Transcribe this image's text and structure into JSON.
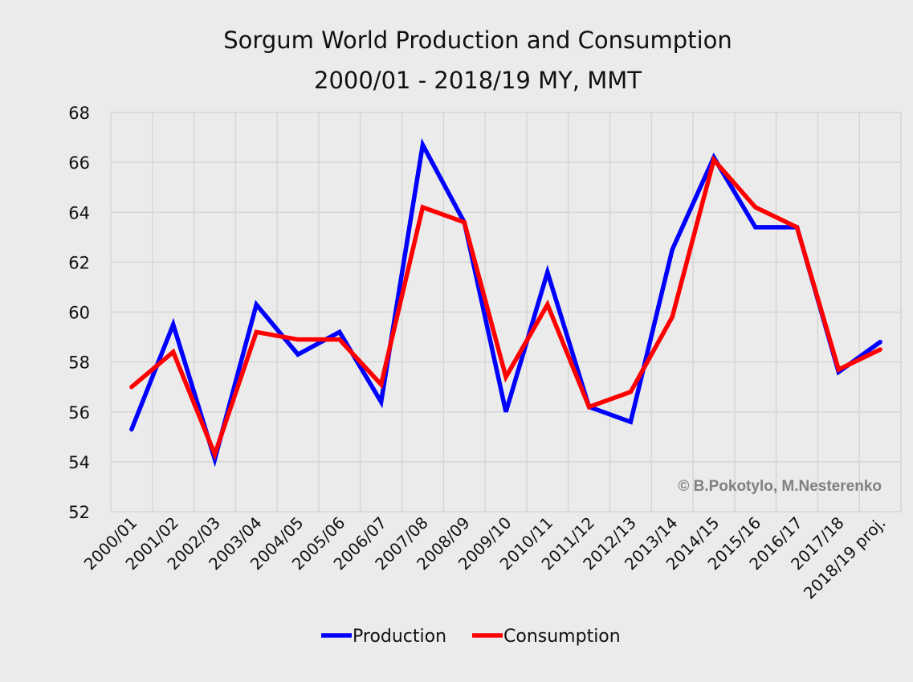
{
  "chart_data": {
    "type": "line",
    "title": "Sorgum World Production and Consumption",
    "subtitle": "2000/01 - 2018/19 MY, MMT",
    "xlabel": "",
    "ylabel": "",
    "ylim": [
      52,
      68
    ],
    "yticks": [
      52,
      54,
      56,
      58,
      60,
      62,
      64,
      66,
      68
    ],
    "grid": true,
    "legend_position": "bottom",
    "categories": [
      "2000/01",
      "2001/02",
      "2002/03",
      "2003/04",
      "2004/05",
      "2005/06",
      "2006/07",
      "2007/08",
      "2008/09",
      "2009/10",
      "2010/11",
      "2011/12",
      "2012/13",
      "2013/14",
      "2014/15",
      "2015/16",
      "2016/17",
      "2017/18",
      "2018/19 proj."
    ],
    "series": [
      {
        "name": "Production",
        "color": "#0000ff",
        "values": [
          55.3,
          59.5,
          54.1,
          60.3,
          58.3,
          59.2,
          56.4,
          66.7,
          63.6,
          56.0,
          61.6,
          56.2,
          55.6,
          62.5,
          66.2,
          63.4,
          63.4,
          57.6,
          58.8
        ]
      },
      {
        "name": "Consumption",
        "color": "#ff0000",
        "values": [
          57.0,
          58.4,
          54.3,
          59.2,
          58.9,
          58.9,
          57.1,
          64.2,
          63.6,
          57.4,
          60.3,
          56.2,
          56.8,
          59.8,
          66.1,
          64.2,
          63.4,
          57.7,
          58.5
        ]
      }
    ],
    "annotation": "© B.Pokotylo, M.Nesterenko"
  }
}
